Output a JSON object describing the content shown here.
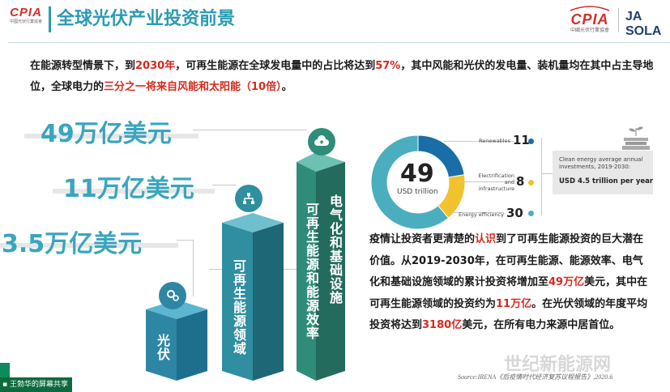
{
  "header": {
    "title": "全球光伏产业投资前景",
    "logo_left": "CPIA",
    "logo_left_sub": "中國光伏行業協會",
    "logo_right": "CPIA",
    "logo_right_sub": "中國光伏行業協會",
    "partner_logo": "JA SOLA"
  },
  "intro": {
    "l1": "在能源转型情景下，到",
    "year": "2030年",
    "l2": "，可再生能源在全球发电量中的占比将达到",
    "pct": "57%",
    "l3": "，其中风能和光伏的发电量、装机量均在其中占主导地位，全球电力的",
    "highlight": "三分之一将来自风能和太阳能（10倍）",
    "end": "。"
  },
  "amounts": [
    {
      "text": "49万亿美元"
    },
    {
      "text": "11万亿美元"
    },
    {
      "text": "3.5万亿美元"
    }
  ],
  "bars": [
    {
      "label": "光伏",
      "icon": "gear-icon",
      "color": "#2e86a5"
    },
    {
      "label": "可再生能源领域",
      "icon": "network-icon",
      "color": "#2c7f91"
    },
    {
      "label": "可再生能源和能源效率",
      "label2": "电气化和基础设施",
      "icon": "cloud-upload-icon",
      "color": "#2c7f6c"
    }
  ],
  "chart_data": {
    "type": "pie",
    "center_value": "49",
    "center_unit": "USD trillion",
    "categories": [
      "Renewables",
      "Electrification and infrastructure",
      "Energy efficiency"
    ],
    "values": [
      11,
      8,
      30
    ],
    "colors": [
      "#1a6ea8",
      "#f2c12e",
      "#4aaebf"
    ],
    "callout": {
      "caption": "Clean energy average annual investments, 2019-2030:",
      "value": "USD 4.5 trillion per year"
    }
  },
  "paragraph": {
    "p1": "疫情让投资者更清楚的",
    "h1": "认识",
    "p2": "到了可再生能源投资的巨大潜在价值。从2019-2030年，在可再生能源、能源效率、电气化和基础设施领域的累计投资将增加至",
    "h2": "49万亿",
    "p3": "美元，其中在可再生能源领域的投资约为",
    "h3": "11万亿",
    "p4": "。在光伏领域的年度平均投资将达到",
    "h4": "3180亿",
    "p5": "美元，在所有电力来源中居首位。"
  },
  "source": "Source:IRENA《后疫情时代经济复苏议程报告》,2020.6",
  "watermark": "世纪新能源网",
  "screen_share": "王勃华的屏幕共享"
}
